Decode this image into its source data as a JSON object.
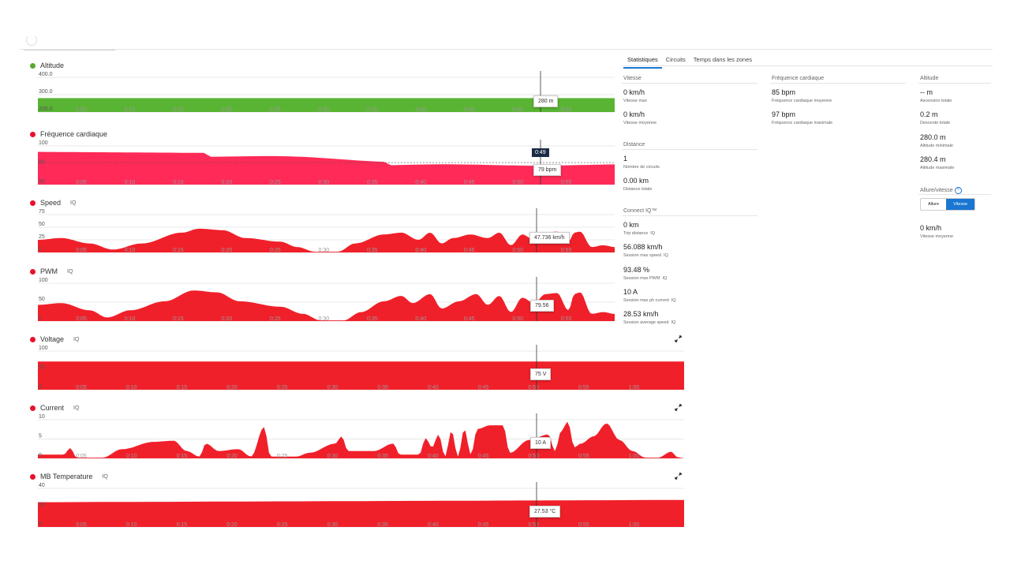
{
  "charts": [
    {
      "id": "altitude",
      "title": "Altitude",
      "dot_color": "#5aa832",
      "fill": "#5ab433",
      "y_ticks": [
        "400.0",
        "300.0",
        "200.0"
      ],
      "x_ticks": [
        "0:05",
        "0:10",
        "0:15",
        "0:20",
        "0:25",
        "0:30",
        "0:35",
        "0:40",
        "0:45",
        "0:50",
        "0:55"
      ],
      "tooltip": "280 m",
      "iq": false,
      "expand": false
    },
    {
      "id": "heart",
      "title": "Fréquence cardiaque",
      "dot_color": "#e8112d",
      "fill": "#ff2a57",
      "y_ticks": [
        "100",
        "80",
        "60"
      ],
      "x_ticks": [
        "0:05",
        "0:10",
        "0:15",
        "0:20",
        "0:25",
        "0:30",
        "0:35",
        "0:40",
        "0:45",
        "0:50",
        "0:55"
      ],
      "tooltip": "79 bpm",
      "time_badge": "0:49",
      "iq": false,
      "expand": false
    },
    {
      "id": "speed",
      "title": "Speed",
      "dot_color": "#e8112d",
      "fill": "#f0202a",
      "y_ticks": [
        "75",
        "50",
        "25",
        "0"
      ],
      "x_ticks": [
        "0:05",
        "0:10",
        "0:15",
        "0:20",
        "0:25",
        "0:30",
        "0:35",
        "0:40",
        "0:45",
        "0:50",
        "0:55"
      ],
      "tooltip": "47.736 km/h",
      "iq": true,
      "expand": false
    },
    {
      "id": "pwm",
      "title": "PWM",
      "dot_color": "#e8112d",
      "fill": "#f0202a",
      "y_ticks": [
        "100",
        "50",
        "0"
      ],
      "x_ticks": [
        "0:05",
        "0:10",
        "0:15",
        "0:20",
        "0:25",
        "0:30",
        "0:35",
        "0:40",
        "0:45",
        "0:50",
        "0:55"
      ],
      "tooltip": "79.56",
      "iq": true,
      "expand": false
    },
    {
      "id": "voltage",
      "title": "Voltage",
      "dot_color": "#e8112d",
      "fill": "#f0202a",
      "y_ticks": [
        "100",
        "50",
        "0"
      ],
      "x_ticks": [
        "0:05",
        "0:10",
        "0:15",
        "0:20",
        "0:25",
        "0:30",
        "0:35",
        "0:40",
        "0:45",
        "0:50",
        "0:55",
        "1:00"
      ],
      "tooltip": "75 V",
      "iq": true,
      "expand": true
    },
    {
      "id": "current",
      "title": "Current",
      "dot_color": "#e8112d",
      "fill": "#f0202a",
      "y_ticks": [
        "10",
        "5",
        "0"
      ],
      "x_ticks": [
        "0:05",
        "0:10",
        "0:15",
        "0:20",
        "0:25",
        "0:30",
        "0:35",
        "0:40",
        "0:45",
        "0:50",
        "0:55",
        "1:00"
      ],
      "tooltip": "10 A",
      "iq": true,
      "expand": true
    },
    {
      "id": "mbtemp",
      "title": "MB Temperature",
      "dot_color": "#e8112d",
      "fill": "#f0202a",
      "y_ticks": [
        "40",
        "20",
        "0"
      ],
      "x_ticks": [
        "0:05",
        "0:10",
        "0:15",
        "0:20",
        "0:25",
        "0:30",
        "0:35",
        "0:40",
        "0:45",
        "0:50",
        "0:55",
        "1:00"
      ],
      "tooltip": "27.53 °C",
      "iq": true,
      "expand": true
    }
  ],
  "iq_label": "IQ",
  "tabs": [
    {
      "label": "Statistiques",
      "active": true
    },
    {
      "label": "Circuits",
      "active": false
    },
    {
      "label": "Temps dans les zones",
      "active": false
    }
  ],
  "stats": {
    "vitesse": {
      "title": "Vitesse",
      "items": [
        {
          "value": "0 km/h",
          "label": "Vitesse max"
        },
        {
          "value": "0 km/h",
          "label": "Vitesse moyenne"
        }
      ]
    },
    "distance": {
      "title": "Distance",
      "items": [
        {
          "value": "1",
          "label": "Nombre de circuits"
        },
        {
          "value": "0.00 km",
          "label": "Distance totale"
        }
      ]
    },
    "connectiq": {
      "title": "Connect IQ™",
      "items": [
        {
          "value": "0 km",
          "label": "Trip distance"
        },
        {
          "value": "56.088 km/h",
          "label": "Session max speed"
        },
        {
          "value": "93.48 %",
          "label": "Session max PWM"
        },
        {
          "value": "10 A",
          "label": "Session max ph current"
        },
        {
          "value": "28.53 km/h",
          "label": "Session average speed"
        }
      ]
    },
    "frequence": {
      "title": "Fréquence cardiaque",
      "items": [
        {
          "value": "85 bpm",
          "label": "Fréquence cardiaque moyenne"
        },
        {
          "value": "97 bpm",
          "label": "Fréquence cardiaque maximale"
        }
      ]
    },
    "altitude": {
      "title": "Altitude",
      "items": [
        {
          "value": "-- m",
          "label": "Ascension totale"
        },
        {
          "value": "0.2 m",
          "label": "Descente totale"
        },
        {
          "value": "280.0 m",
          "label": "Altitude minimale"
        },
        {
          "value": "280.4 m",
          "label": "Altitude maximale"
        }
      ]
    },
    "allure": {
      "title": "Allure/vitesse",
      "help_icon": "?",
      "toggle": [
        "Allure",
        "Vitesse"
      ],
      "active": "Vitesse",
      "value": "0 km/h",
      "label": "Vitesse moyenne"
    }
  },
  "colors": {
    "accent": "#1976d2",
    "red": "#f0202a",
    "green": "#5ab433",
    "pink": "#ff2a57"
  }
}
